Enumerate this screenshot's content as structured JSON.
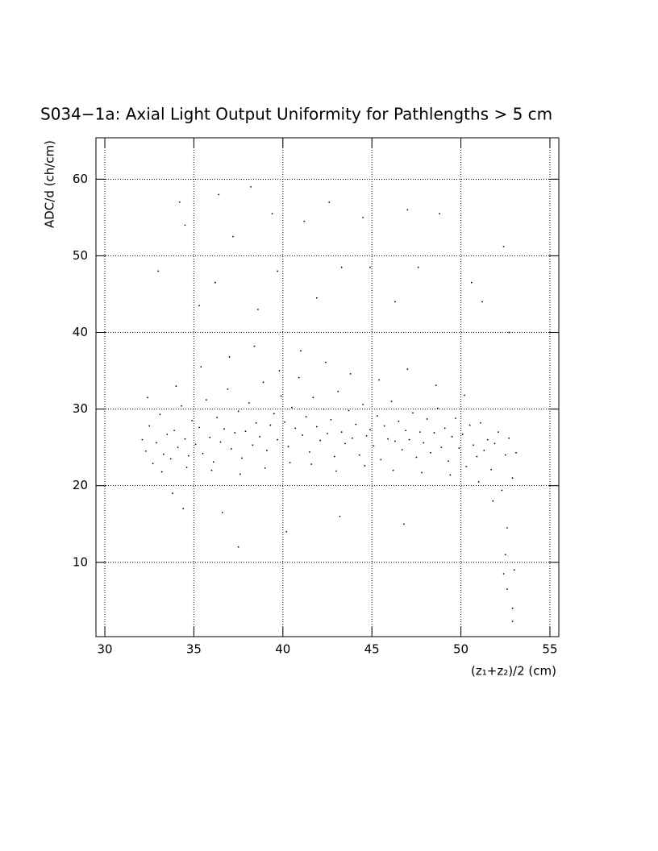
{
  "chart_data": {
    "type": "scatter",
    "title": "S034−1a: Axial Light Output Uniformity for Pathlengths > 5 cm",
    "xlabel": "(z₁+z₂)/2 (cm)",
    "ylabel": "ADC/d (ch/cm)",
    "xlim": [
      29.5,
      55.5
    ],
    "ylim": [
      0.3,
      65.4
    ],
    "xticks": [
      30,
      35,
      40,
      45,
      50,
      55
    ],
    "yticks": [
      10,
      20,
      30,
      40,
      50,
      60
    ],
    "grid": true,
    "color": "#000000",
    "x": [
      32.1,
      32.3,
      32.5,
      32.7,
      32.9,
      33.1,
      33.3,
      33.5,
      33.7,
      33.9,
      34.1,
      34.3,
      34.5,
      34.7,
      34.9,
      35.1,
      35.3,
      35.5,
      35.7,
      35.9,
      36.1,
      36.3,
      36.5,
      36.7,
      36.9,
      37.1,
      37.3,
      37.5,
      37.7,
      37.9,
      38.1,
      38.3,
      38.5,
      38.7,
      38.9,
      39.1,
      39.3,
      39.5,
      39.7,
      39.9,
      40.1,
      40.3,
      40.5,
      40.7,
      40.9,
      41.1,
      41.3,
      41.5,
      41.7,
      41.9,
      42.1,
      42.3,
      42.5,
      42.7,
      42.9,
      43.1,
      43.3,
      43.5,
      43.7,
      43.9,
      44.1,
      44.3,
      44.5,
      44.7,
      44.9,
      45.1,
      45.3,
      45.5,
      45.7,
      45.9,
      46.1,
      46.3,
      46.5,
      46.7,
      46.9,
      47.1,
      47.3,
      47.5,
      47.7,
      47.9,
      48.1,
      48.3,
      48.5,
      48.7,
      48.9,
      49.1,
      49.3,
      49.5,
      49.7,
      49.9,
      50.1,
      50.3,
      50.5,
      50.7,
      50.9,
      51.1,
      51.3,
      51.5,
      51.7,
      51.9,
      52.1,
      52.3,
      52.5,
      52.7,
      52.9,
      53.1,
      32.4,
      33.2,
      34.0,
      34.6,
      35.4,
      36.0,
      37.0,
      37.6,
      38.4,
      39.0,
      39.8,
      40.4,
      41.0,
      41.6,
      42.4,
      43.0,
      43.8,
      44.6,
      45.4,
      46.2,
      47.0,
      47.8,
      48.6,
      49.4,
      50.2,
      51.0,
      51.8,
      52.6,
      33.0,
      34.2,
      34.5,
      35.3,
      36.4,
      36.2,
      37.2,
      37.5,
      38.2,
      38.6,
      39.4,
      39.7,
      40.2,
      41.2,
      41.9,
      42.6,
      43.3,
      44.5,
      44.9,
      46.3,
      46.8,
      47.0,
      47.6,
      48.8,
      50.6,
      51.2,
      52.4,
      52.7,
      52.4,
      52.6,
      52.9,
      52.9,
      53.0,
      52.5,
      33.8,
      36.6,
      34.4,
      43.2
    ],
    "y": [
      26.0,
      24.5,
      27.8,
      22.9,
      25.6,
      29.3,
      24.1,
      26.7,
      23.5,
      27.2,
      25.0,
      30.4,
      26.1,
      23.9,
      28.5,
      25.4,
      27.6,
      24.2,
      31.2,
      26.3,
      23.1,
      28.9,
      25.7,
      27.4,
      32.6,
      24.8,
      26.9,
      29.7,
      23.6,
      27.1,
      30.8,
      25.3,
      28.2,
      26.4,
      33.5,
      24.6,
      27.9,
      29.4,
      26.0,
      31.7,
      28.3,
      25.1,
      30.2,
      27.5,
      34.1,
      26.6,
      29.0,
      24.4,
      31.5,
      27.7,
      25.9,
      30.0,
      26.8,
      28.6,
      23.8,
      32.3,
      27.0,
      25.5,
      29.8,
      26.2,
      28.0,
      24.0,
      30.6,
      26.5,
      27.3,
      25.2,
      29.1,
      23.4,
      27.8,
      26.1,
      31.0,
      25.8,
      28.4,
      24.7,
      27.2,
      26.0,
      29.5,
      23.7,
      27.0,
      25.6,
      28.7,
      24.3,
      26.9,
      30.1,
      25.0,
      27.5,
      23.2,
      26.4,
      28.8,
      24.9,
      26.7,
      22.5,
      27.9,
      25.3,
      23.8,
      28.2,
      24.6,
      26.0,
      22.1,
      25.5,
      27.0,
      19.4,
      24.0,
      26.2,
      21.0,
      24.3,
      31.5,
      21.8,
      33.0,
      22.4,
      35.5,
      22.0,
      36.8,
      21.5,
      38.2,
      22.3,
      35.0,
      23.0,
      37.6,
      22.8,
      36.1,
      21.9,
      34.6,
      22.6,
      33.8,
      22.0,
      35.2,
      21.7,
      33.1,
      21.4,
      31.8,
      20.5,
      18.0,
      14.5,
      48.0,
      57.0,
      54.0,
      43.5,
      58.0,
      46.5,
      52.5,
      12.0,
      59.0,
      43.0,
      55.5,
      48.0,
      14.0,
      54.5,
      44.5,
      57.0,
      48.5,
      55.0,
      48.5,
      44.0,
      15.0,
      56.0,
      48.5,
      55.5,
      46.5,
      44.0,
      51.2,
      40.0,
      8.5,
      6.5,
      4.0,
      2.3,
      9.0,
      11.0,
      19.0,
      16.5,
      17.0,
      16.0
    ]
  }
}
